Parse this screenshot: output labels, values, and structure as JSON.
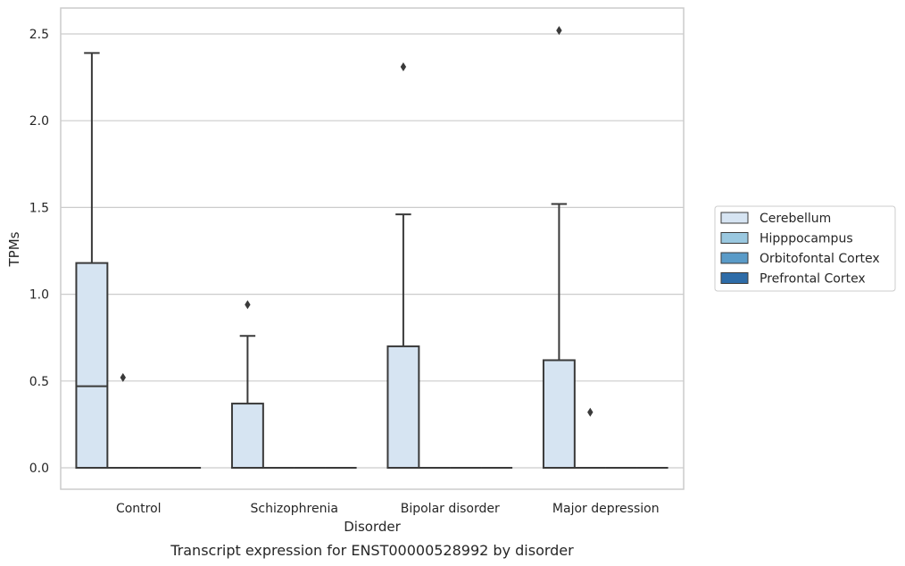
{
  "chart_data": {
    "type": "box",
    "caption": "Transcript expression for ENST00000528992 by disorder",
    "xlabel": "Disorder",
    "ylabel": "TPMs",
    "ylim": [
      -0.12,
      2.65
    ],
    "yticks": [
      "0.0",
      "0.5",
      "1.0",
      "1.5",
      "2.0",
      "2.5"
    ],
    "ytick_values": [
      0,
      0.5,
      1.0,
      1.5,
      2.0,
      2.5
    ],
    "grid": true,
    "legend_position": "right",
    "categories": [
      "Control",
      "Schizophrenia",
      "Bipolar disorder",
      "Major depression"
    ],
    "series": [
      {
        "name": "Cerebellum",
        "color": "#d6e4f2",
        "boxes": [
          {
            "q1": 0.0,
            "median": 0.47,
            "q3": 1.18,
            "whisker_low": 0.0,
            "whisker_high": 2.39,
            "outliers": []
          },
          {
            "q1": 0.0,
            "median": 0.0,
            "q3": 0.37,
            "whisker_low": 0.0,
            "whisker_high": 0.76,
            "outliers": [
              0.94
            ]
          },
          {
            "q1": 0.0,
            "median": 0.0,
            "q3": 0.7,
            "whisker_low": 0.0,
            "whisker_high": 1.46,
            "outliers": [
              2.31
            ]
          },
          {
            "q1": 0.0,
            "median": 0.0,
            "q3": 0.62,
            "whisker_low": 0.0,
            "whisker_high": 1.52,
            "outliers": [
              2.52
            ]
          }
        ]
      },
      {
        "name": "Hipppocampus",
        "color": "#9ac8e0",
        "boxes": [
          {
            "q1": 0.0,
            "median": 0.0,
            "q3": 0.0,
            "whisker_low": 0.0,
            "whisker_high": 0.0,
            "outliers": [
              0.52
            ]
          },
          {
            "q1": 0.0,
            "median": 0.0,
            "q3": 0.0,
            "whisker_low": 0.0,
            "whisker_high": 0.0,
            "outliers": []
          },
          {
            "q1": 0.0,
            "median": 0.0,
            "q3": 0.0,
            "whisker_low": 0.0,
            "whisker_high": 0.0,
            "outliers": []
          },
          {
            "q1": 0.0,
            "median": 0.0,
            "q3": 0.0,
            "whisker_low": 0.0,
            "whisker_high": 0.0,
            "outliers": [
              0.32
            ]
          }
        ]
      },
      {
        "name": "Orbitofontal Cortex",
        "color": "#5a9bc8",
        "boxes": [
          {
            "q1": 0.0,
            "median": 0.0,
            "q3": 0.0,
            "whisker_low": 0.0,
            "whisker_high": 0.0,
            "outliers": []
          },
          {
            "q1": 0.0,
            "median": 0.0,
            "q3": 0.0,
            "whisker_low": 0.0,
            "whisker_high": 0.0,
            "outliers": []
          },
          {
            "q1": 0.0,
            "median": 0.0,
            "q3": 0.0,
            "whisker_low": 0.0,
            "whisker_high": 0.0,
            "outliers": []
          },
          {
            "q1": 0.0,
            "median": 0.0,
            "q3": 0.0,
            "whisker_low": 0.0,
            "whisker_high": 0.0,
            "outliers": []
          }
        ]
      },
      {
        "name": "Prefrontal Cortex",
        "color": "#2e6ca8",
        "boxes": [
          {
            "q1": 0.0,
            "median": 0.0,
            "q3": 0.0,
            "whisker_low": 0.0,
            "whisker_high": 0.0,
            "outliers": []
          },
          {
            "q1": 0.0,
            "median": 0.0,
            "q3": 0.0,
            "whisker_low": 0.0,
            "whisker_high": 0.0,
            "outliers": []
          },
          {
            "q1": 0.0,
            "median": 0.0,
            "q3": 0.0,
            "whisker_low": 0.0,
            "whisker_high": 0.0,
            "outliers": []
          },
          {
            "q1": 0.0,
            "median": 0.0,
            "q3": 0.0,
            "whisker_low": 0.0,
            "whisker_high": 0.0,
            "outliers": []
          }
        ]
      }
    ],
    "colors": {
      "box_edge": "#3a3a3a",
      "grid": "#cccccc",
      "frame": "#cccccc",
      "text": "#262626"
    }
  }
}
